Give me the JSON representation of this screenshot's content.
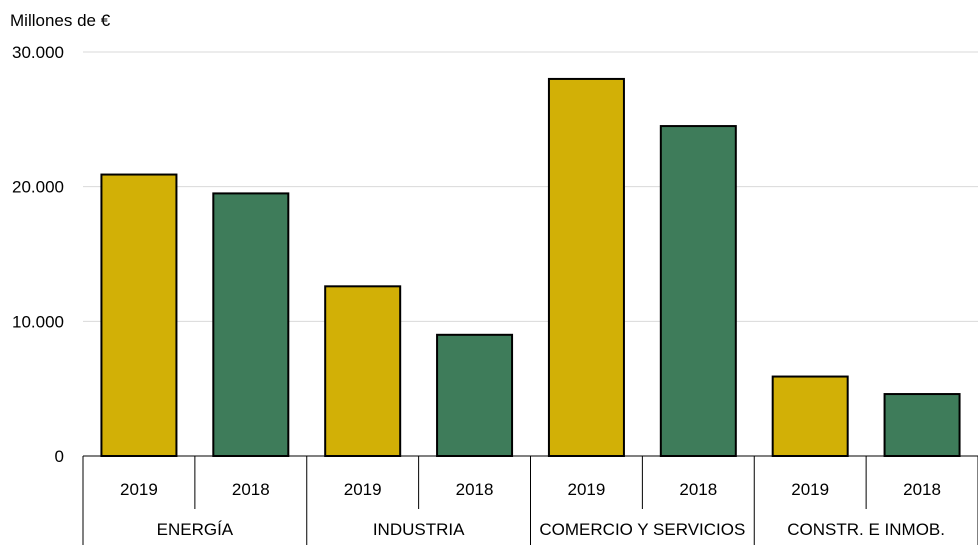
{
  "chart_data": {
    "type": "bar",
    "ylabel": "Millones de €",
    "ylim": [
      0,
      30000
    ],
    "yticks": [
      0,
      10000,
      20000,
      30000
    ],
    "ytick_labels": [
      "0",
      "10.000",
      "20.000",
      "30.000"
    ],
    "grid": true,
    "groups": [
      "ENERGÍA",
      "INDUSTRIA",
      "COMERCIO Y SERVICIOS",
      "CONSTR. E INMOB."
    ],
    "categories": [
      "2019",
      "2018",
      "2019",
      "2018",
      "2019",
      "2018",
      "2019",
      "2018"
    ],
    "values": [
      20900,
      19500,
      12600,
      9000,
      28000,
      24500,
      5900,
      4600
    ],
    "bar_colors": [
      "#d2b006",
      "#3e7c5a",
      "#d2b006",
      "#3e7c5a",
      "#d2b006",
      "#3e7c5a",
      "#d2b006",
      "#3e7c5a"
    ]
  }
}
